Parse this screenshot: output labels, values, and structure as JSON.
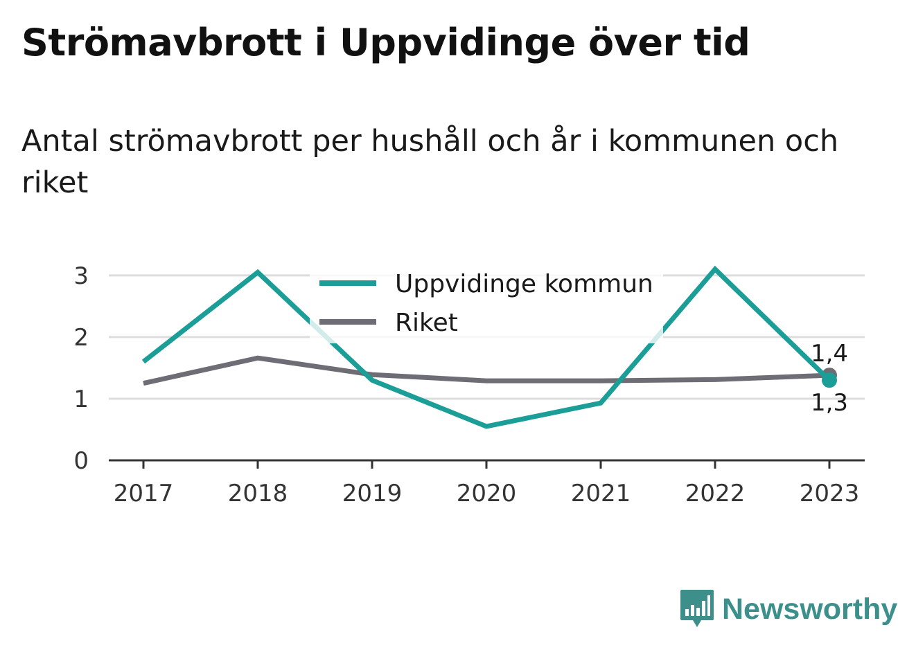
{
  "title": "Strömavbrott i Uppvidinge över tid",
  "subtitle": "Antal strömavbrott per hushåll och år i kommunen och riket",
  "brand": {
    "name": "Newsworthy"
  },
  "chart_data": {
    "type": "line",
    "title": "Strömavbrott i Uppvidinge över tid",
    "subtitle": "Antal strömavbrott per hushåll och år i kommunen och riket",
    "xlabel": "",
    "ylabel": "",
    "categories": [
      "2017",
      "2018",
      "2019",
      "2020",
      "2021",
      "2022",
      "2023"
    ],
    "ylim": [
      0,
      3.2
    ],
    "yticks": [
      "0",
      "1",
      "2",
      "3"
    ],
    "grid": true,
    "legend_position": "top-center",
    "series": [
      {
        "name": "Uppvidinge kommun",
        "color": "#1a9e97",
        "values": [
          1.6,
          3.05,
          1.3,
          0.55,
          0.93,
          3.1,
          1.3
        ],
        "end_label": "1,3"
      },
      {
        "name": "Riket",
        "color": "#6e6d75",
        "values": [
          1.25,
          1.66,
          1.39,
          1.29,
          1.29,
          1.31,
          1.38
        ],
        "end_label": "1,4"
      }
    ]
  }
}
